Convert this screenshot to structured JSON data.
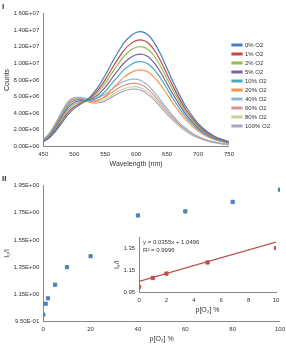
{
  "chart_data": [
    {
      "type": "line",
      "title": "I",
      "xlabel": "Wavelength (nm)",
      "ylabel": "Counts",
      "x": [
        450,
        460,
        470,
        480,
        490,
        500,
        510,
        520,
        530,
        540,
        550,
        560,
        570,
        580,
        590,
        600,
        610,
        620,
        630,
        640,
        650,
        660,
        670,
        680,
        690,
        700,
        710,
        720,
        730,
        740,
        750
      ],
      "series": [
        {
          "name": "0% O2",
          "color": "#4a7ebb",
          "values": [
            570000.0,
            1030000.0,
            1830000.0,
            2820000.0,
            3820000.0,
            4550000.0,
            5080000.0,
            5570000.0,
            6330000.0,
            7330000.0,
            8570000.0,
            9950000.0,
            11250000.0,
            12440000.0,
            13250000.0,
            13730000.0,
            13800000.0,
            13390000.0,
            12420000.0,
            11040000.0,
            9380000.0,
            7730000.0,
            6210000.0,
            4830000.0,
            3730000.0,
            2760000.0,
            2070000.0,
            1520000.0,
            1100000.0,
            830000.0,
            550000.0
          ]
        },
        {
          "name": "1% O2",
          "color": "#be4b48",
          "values": [
            600000.0,
            1110000.0,
            1990000.0,
            3050000.0,
            4090000.0,
            4780000.0,
            5200000.0,
            5530000.0,
            6110000.0,
            6950000.0,
            8020000.0,
            9270000.0,
            10450000.0,
            11550000.0,
            12290000.0,
            12740000.0,
            12800000.0,
            12420000.0,
            11520000.0,
            10240000.0,
            8700000.0,
            7170000.0,
            5760000.0,
            4480000.0,
            3460000.0,
            2560000.0,
            1920000.0,
            1410000.0,
            1020000.0,
            770000.0,
            510000.0
          ]
        },
        {
          "name": "2% O2",
          "color": "#98b954",
          "values": [
            630000.0,
            1200000.0,
            2160000.0,
            3300000.0,
            4380000.0,
            5040000.0,
            5370000.0,
            5550000.0,
            5970000.0,
            6660000.0,
            7590000.0,
            8730000.0,
            9810000.0,
            10830000.0,
            11520000.0,
            11940000.0,
            12000000.0,
            11640000.0,
            10800000.0,
            9600000.0,
            8160000.0,
            6720000.0,
            5400000.0,
            4200000.0,
            3240000.0,
            2400000.0,
            1800000.0,
            1320000.0,
            960000.0,
            720000.0,
            480000.0
          ]
        },
        {
          "name": "5% O2",
          "color": "#7d60a0",
          "values": [
            660000.0,
            1280000.0,
            2330000.0,
            3540000.0,
            4660000.0,
            5290000.0,
            5510000.0,
            5540000.0,
            5790000.0,
            6320000.0,
            7100000.0,
            8120000.0,
            9090000.0,
            10020000.0,
            10660000.0,
            11040000.0,
            11100000.0,
            10770000.0,
            9990000.0,
            8880000.0,
            7550000.0,
            6220000.0,
            5000000.0,
            3890000.0,
            3000000.0,
            2220000.0,
            1670000.0,
            1220000.0,
            890000.0,
            670000.0,
            440000.0
          ]
        },
        {
          "name": "10% O2",
          "color": "#46aac5",
          "values": [
            690000.0,
            1370000.0,
            2490000.0,
            3780000.0,
            4940000.0,
            5530000.0,
            5660000.0,
            5530000.0,
            5610000.0,
            5990000.0,
            6610000.0,
            7510000.0,
            8370000.0,
            9220000.0,
            9790000.0,
            10150000.0,
            10200000.0,
            9890000.0,
            9180000.0,
            8160000.0,
            6940000.0,
            5710000.0,
            4590000.0,
            3570000.0,
            2750000.0,
            2040000.0,
            1530000.0,
            1120000.0,
            820000.0,
            610000.0,
            410000.0
          ]
        },
        {
          "name": "20% O2",
          "color": "#f79646",
          "values": [
            710000.0,
            1430000.0,
            2590000.0,
            3940000.0,
            5120000.0,
            5660000.0,
            5690000.0,
            5430000.0,
            5350000.0,
            5580000.0,
            6050000.0,
            6820000.0,
            7570000.0,
            8320000.0,
            8830000.0,
            9150000.0,
            9200000.0,
            8920000.0,
            8280000.0,
            7360000.0,
            6260000.0,
            5150000.0,
            4140000.0,
            3220000.0,
            2480000.0,
            1840000.0,
            1380000.0,
            1010000.0,
            740000.0,
            550000.0,
            370000.0
          ]
        },
        {
          "name": "40% O2",
          "color": "#95b3d7",
          "values": [
            760000.0,
            1530000.0,
            2730000.0,
            4090000.0,
            5300000.0,
            5860000.0,
            5910000.0,
            5760000.0,
            5690000.0,
            5900000.0,
            6270000.0,
            6840000.0,
            7410000.0,
            7820000.0,
            8060000.0,
            8100000.0,
            7860000.0,
            7290000.0,
            6480000.0,
            5510000.0,
            4540000.0,
            3650000.0,
            2840000.0,
            2190000.0,
            1620000.0,
            1220000.0,
            890000.0,
            650000.0,
            490000.0,
            320000.0,
            240000.0
          ]
        },
        {
          "name": "60% O2",
          "color": "#d99694",
          "values": [
            760000.0,
            1530000.0,
            2740000.0,
            4110000.0,
            5310000.0,
            5850000.0,
            5850000.0,
            5630000.0,
            5480000.0,
            5630000.0,
            5930000.0,
            6450000.0,
            6960000.0,
            7340000.0,
            7560000.0,
            7600000.0,
            7370000.0,
            6840000.0,
            6080000.0,
            5170000.0,
            4260000.0,
            3420000.0,
            2660000.0,
            2050000.0,
            1520000.0,
            1140000.0,
            840000.0,
            610000.0,
            460000.0,
            300000.0,
            230000.0
          ]
        },
        {
          "name": "80% O2",
          "color": "#c3d69b",
          "values": [
            770000.0,
            1540000.0,
            2760000.0,
            4140000.0,
            5340000.0,
            5860000.0,
            5810000.0,
            5540000.0,
            5340000.0,
            5410000.0,
            5660000.0,
            6120000.0,
            6610000.0,
            6950000.0,
            7160000.0,
            7200000.0,
            6980000.0,
            6480000.0,
            5760000.0,
            4900000.0,
            4030000.0,
            3240000.0,
            2520000.0,
            1940000.0,
            1440000.0,
            1080000.0,
            790000.0,
            580000.0,
            430000.0,
            290000.0,
            220000.0
          ]
        },
        {
          "name": "100% O2",
          "color": "#b3a2c7",
          "values": [
            770000.0,
            1550000.0,
            2790000.0,
            4180000.0,
            5380000.0,
            5890000.0,
            5810000.0,
            5490000.0,
            5230000.0,
            5260000.0,
            5460000.0,
            5890000.0,
            6340000.0,
            6660000.0,
            6870000.0,
            6900000.0,
            6690000.0,
            6210000.0,
            5520000.0,
            4690000.0,
            3860000.0,
            3110000.0,
            2420000.0,
            1860000.0,
            1380000.0,
            1040000.0,
            760000.0,
            550000.0,
            410000.0,
            280000.0,
            210000.0
          ]
        }
      ],
      "xlim": [
        450,
        750
      ],
      "xticks": [
        450,
        500,
        550,
        600,
        650,
        700,
        750
      ],
      "ylim": [
        0,
        16000000
      ],
      "yticks": [
        {
          "value": 0,
          "label": "0.00E+00"
        },
        {
          "value": 2000000,
          "label": "2.00E+06"
        },
        {
          "value": 4000000,
          "label": "4.00E+06"
        },
        {
          "value": 6000000,
          "label": "6.00E+06"
        },
        {
          "value": 8000000,
          "label": "8.00E+06"
        },
        {
          "value": 10000000,
          "label": "1.00E+07"
        },
        {
          "value": 12000000,
          "label": "1.20E+07"
        },
        {
          "value": 14000000,
          "label": "1.40E+07"
        },
        {
          "value": 16000000,
          "label": "1.60E+07"
        }
      ],
      "grid": false,
      "legend": "right",
      "line_style": "solid"
    },
    {
      "type": "scatter",
      "title": "II",
      "xlabel": "p[O₂] %",
      "ylabel": "I₀/I",
      "x": [
        0,
        1,
        2,
        5,
        10,
        20,
        40,
        60,
        80,
        100
      ],
      "values": [
        1.0,
        1.08,
        1.12,
        1.22,
        1.35,
        1.43,
        1.73,
        1.76,
        1.83,
        1.92
      ],
      "color": "#4f81bd",
      "marker": "square",
      "xlim": [
        0,
        100
      ],
      "xticks": [
        0,
        20,
        40,
        60,
        80,
        100
      ],
      "ylim": [
        0.95,
        1.95
      ],
      "yticks": [
        {
          "value": 0.95,
          "label": "9.50E-01"
        },
        {
          "value": 1.15,
          "label": "1.15E+00"
        },
        {
          "value": 1.35,
          "label": "1.35E+00"
        },
        {
          "value": 1.55,
          "label": "1.55E+00"
        },
        {
          "value": 1.75,
          "label": "1.75E+00"
        },
        {
          "value": 1.95,
          "label": "1.95E+00"
        }
      ],
      "grid": false
    },
    {
      "type": "scatter",
      "xlabel": "p[O₂] %",
      "ylabel": "I₀/I",
      "annotations": [
        "y = 0.0355x + 1.0496",
        "R² = 0.9996"
      ],
      "series": [
        {
          "type": "scatter",
          "color": "#c0504d",
          "marker": "square",
          "x": [
            0,
            1,
            2,
            5,
            10
          ],
          "values": [
            1.0,
            1.08,
            1.12,
            1.22,
            1.35
          ]
        },
        {
          "type": "line",
          "color": "#c0504d",
          "line_style": "solid",
          "x": [
            0,
            10
          ],
          "values": [
            1.0496,
            1.4046
          ]
        }
      ],
      "xlim": [
        0,
        10
      ],
      "xticks": [
        0,
        2,
        4,
        6,
        8,
        10
      ],
      "ylim": [
        0.95,
        1.45
      ],
      "yticks": [
        0.95,
        1.15,
        1.35
      ],
      "grid": false
    }
  ]
}
